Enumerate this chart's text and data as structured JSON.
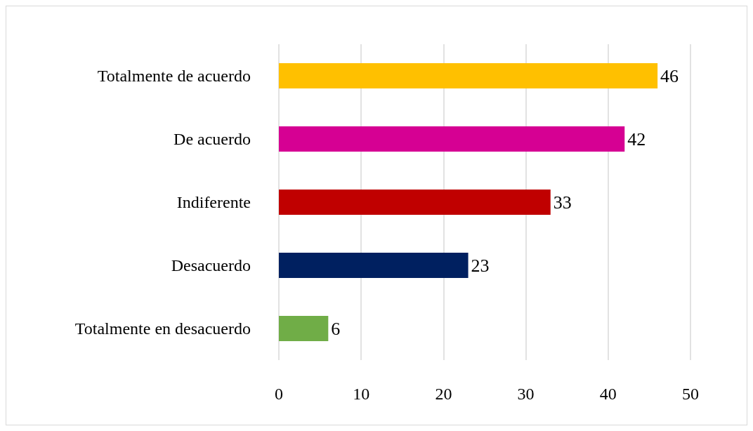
{
  "chart_data": {
    "type": "bar",
    "orientation": "horizontal",
    "categories": [
      "Totalmente de acuerdo",
      "De acuerdo",
      "Indiferente",
      "Desacuerdo",
      "Totalmente en desacuerdo"
    ],
    "values": [
      46,
      42,
      33,
      23,
      6
    ],
    "colors": [
      "#ffc000",
      "#d60093",
      "#c00000",
      "#002060",
      "#70ad47"
    ],
    "xlim": [
      0,
      50
    ],
    "xticks": [
      0,
      10,
      20,
      30,
      40,
      50
    ],
    "grid": "x",
    "data_labels": true
  }
}
